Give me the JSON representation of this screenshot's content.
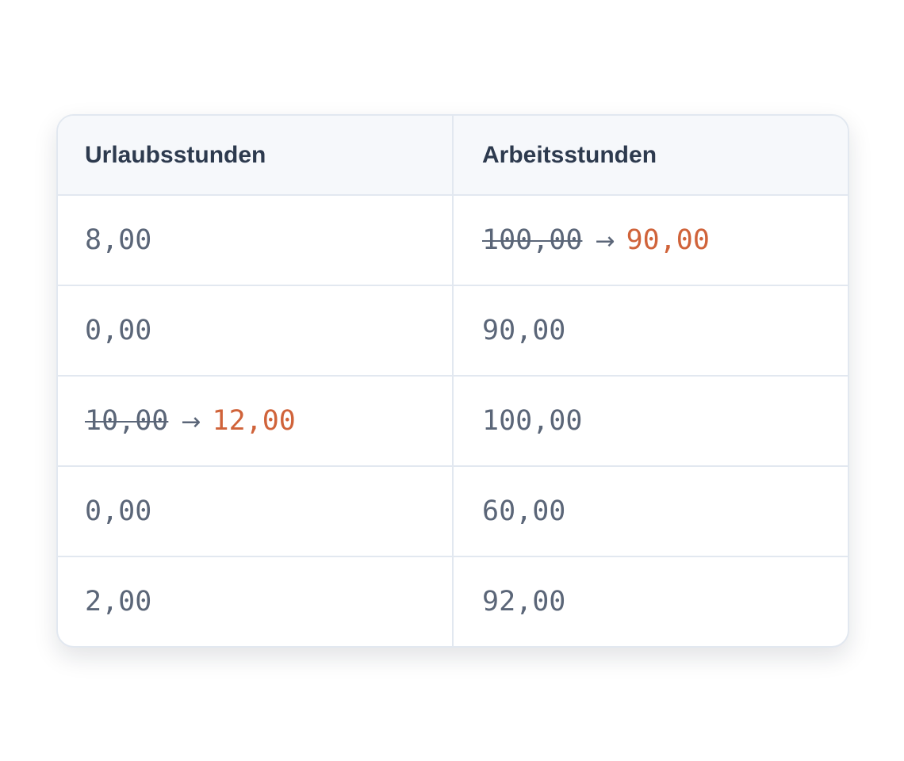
{
  "colors": {
    "changed": "#d0633a",
    "text": "#5b6678",
    "header_bg": "#f6f8fb",
    "border": "#e2e8f0"
  },
  "table": {
    "headers": [
      "Urlaubsstunden",
      "Arbeitsstunden"
    ],
    "rows": [
      [
        {
          "value": "8,00"
        },
        {
          "old": "100,00",
          "arrow": "→",
          "new": "90,00"
        }
      ],
      [
        {
          "value": "0,00"
        },
        {
          "value": "90,00"
        }
      ],
      [
        {
          "old": "10,00",
          "arrow": "→",
          "new": "12,00"
        },
        {
          "value": "100,00"
        }
      ],
      [
        {
          "value": "0,00"
        },
        {
          "value": "60,00"
        }
      ],
      [
        {
          "value": "2,00"
        },
        {
          "value": "92,00"
        }
      ]
    ]
  }
}
